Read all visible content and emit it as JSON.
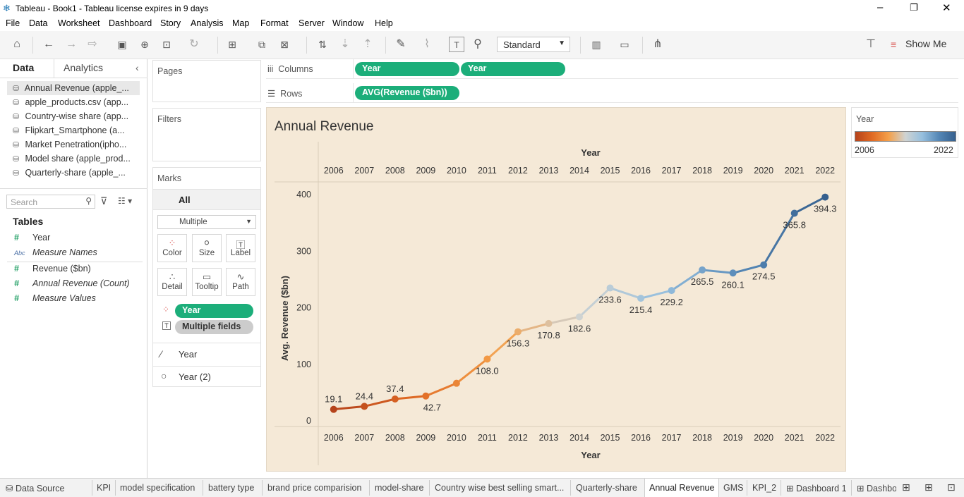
{
  "window": {
    "title": "Tableau - Book1 - Tableau license expires in 9 days"
  },
  "menu": [
    "File",
    "Data",
    "Worksheet",
    "Dashboard",
    "Story",
    "Analysis",
    "Map",
    "Format",
    "Server",
    "Window",
    "Help"
  ],
  "toolbar": {
    "standard": "Standard",
    "show_me": "Show Me"
  },
  "left": {
    "tab_data": "Data",
    "tab_analytics": "Analytics",
    "datasources": [
      "Annual Revenue (apple_...",
      "apple_products.csv (app...",
      "Country-wise share (app...",
      "Flipkart_Smartphone (a...",
      "Market Penetration(ipho...",
      "Model share (apple_prod...",
      "Quarterly-share (apple_..."
    ],
    "search_placeholder": "Search",
    "tables_heading": "Tables",
    "fields": [
      {
        "type": "#",
        "name": "Year",
        "italic": false
      },
      {
        "type": "Abc",
        "name": "Measure Names",
        "italic": true
      },
      {
        "type": "#",
        "name": "Revenue ($bn)",
        "italic": false
      },
      {
        "type": "#",
        "name": "Annual Revenue (Count)",
        "italic": true
      },
      {
        "type": "#",
        "name": "Measure Values",
        "italic": true
      }
    ]
  },
  "pages": {
    "label": "Pages"
  },
  "filters": {
    "label": "Filters"
  },
  "marks": {
    "label": "Marks",
    "all": "All",
    "type": "Multiple",
    "buttons": [
      "Color",
      "Size",
      "Label",
      "Detail",
      "Tooltip",
      "Path"
    ],
    "pill_year": "Year",
    "pill_fields": "Multiple fields",
    "layers": [
      "Year",
      "Year (2)"
    ]
  },
  "shelves": {
    "columns_label": "Columns",
    "columns": [
      "Year",
      "Year"
    ],
    "rows_label": "Rows",
    "rows": [
      "AVG(Revenue ($bn))"
    ]
  },
  "legend": {
    "title": "Year",
    "min": "2006",
    "max": "2022"
  },
  "chart_data": {
    "type": "line",
    "title": "Annual Revenue",
    "xlabel": "Year",
    "ylabel": "Avg. Revenue ($bn)",
    "ylim": [
      0,
      400
    ],
    "yticks": [
      0,
      100,
      200,
      300,
      400
    ],
    "x": [
      "2006",
      "2007",
      "2008",
      "2009",
      "2010",
      "2011",
      "2012",
      "2013",
      "2014",
      "2015",
      "2016",
      "2017",
      "2018",
      "2019",
      "2020",
      "2021",
      "2022"
    ],
    "values": [
      19.1,
      24.4,
      37.4,
      42.7,
      65.2,
      108.0,
      156.3,
      170.8,
      182.6,
      233.6,
      215.4,
      229.2,
      265.5,
      260.1,
      274.5,
      365.8,
      394.3
    ],
    "labels": [
      "19.1",
      "24.4",
      "37.4",
      "42.7",
      "",
      "108.0",
      "156.3",
      "170.8",
      "182.6",
      "233.6",
      "215.4",
      "229.2",
      "265.5",
      "260.1",
      "274.5",
      "365.8",
      "394.3"
    ],
    "color_scale": [
      "#b5431b",
      "#e06a24",
      "#f4a04a",
      "#cfd3d2",
      "#96bfde",
      "#5587b6",
      "#355f8d"
    ]
  },
  "sheet_tabs": [
    "Data Source",
    "KPI",
    "model specification",
    "battery type",
    "brand price comparision",
    "model-share",
    "Country wise best selling smart...",
    "Quarterly-share",
    "Annual Revenue",
    "GMS",
    "KPI_2",
    "Dashboard 1",
    "Dashbo"
  ],
  "active_tab": "Annual Revenue"
}
